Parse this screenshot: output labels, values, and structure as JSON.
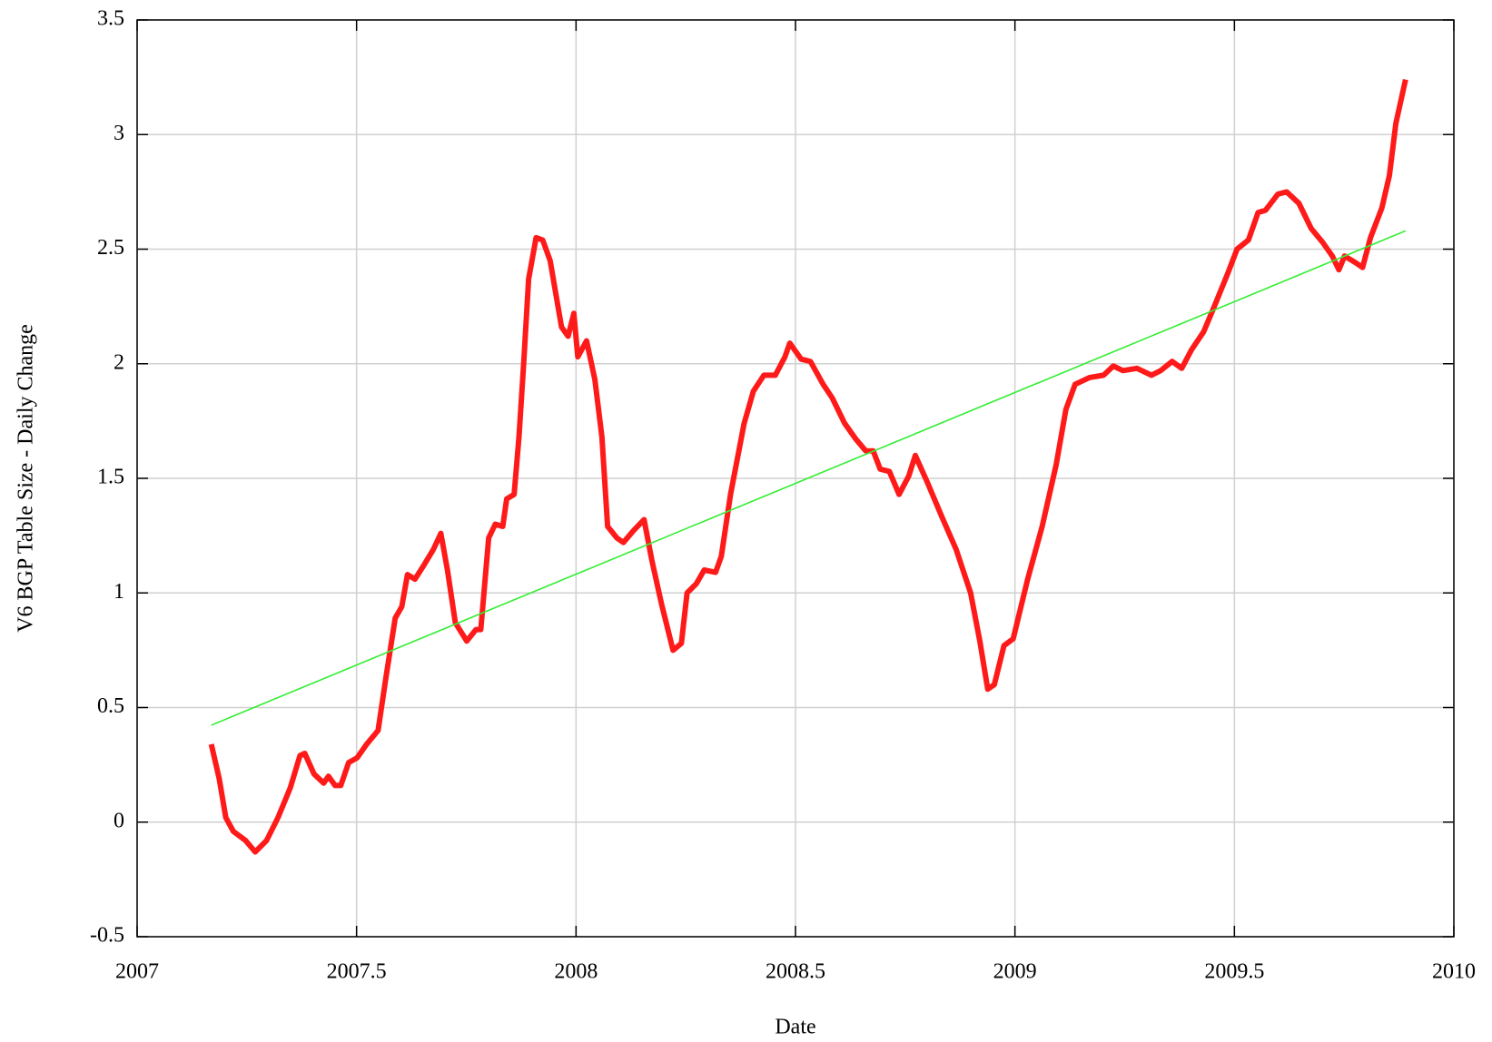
{
  "chart_data": {
    "type": "line",
    "x_label": "Date",
    "y_label": "V6 BGP Table Size - Daily Change",
    "xlim": [
      2007,
      2010
    ],
    "xticks": [
      2007,
      2007.5,
      2008,
      2008.5,
      2009,
      2009.5,
      2010
    ],
    "ylim": [
      -0.5,
      3.5
    ],
    "yticks": [
      -0.5,
      0,
      0.5,
      1,
      1.5,
      2,
      2.5,
      3,
      3.5
    ],
    "grid": true,
    "series": [
      {
        "color": "#ff1a1a",
        "x": [
          2007.169,
          2007.187,
          2007.202,
          2007.219,
          2007.247,
          2007.269,
          2007.295,
          2007.321,
          2007.349,
          2007.371,
          2007.382,
          2007.403,
          2007.425,
          2007.436,
          2007.451,
          2007.464,
          2007.482,
          2007.501,
          2007.523,
          2007.549,
          2007.566,
          2007.588,
          2007.603,
          2007.616,
          2007.633,
          2007.653,
          2007.675,
          2007.692,
          2007.707,
          2007.725,
          2007.751,
          2007.772,
          2007.783,
          2007.801,
          2007.816,
          2007.833,
          2007.842,
          2007.859,
          2007.87,
          2007.881,
          2007.892,
          2007.909,
          2007.924,
          2007.941,
          2007.967,
          2007.982,
          2007.995,
          2008.004,
          2008.024,
          2008.043,
          2008.059,
          2008.072,
          2008.093,
          2008.108,
          2008.13,
          2008.155,
          2008.173,
          2008.195,
          2008.221,
          2008.24,
          2008.253,
          2008.274,
          2008.292,
          2008.318,
          2008.331,
          2008.352,
          2008.383,
          2008.404,
          2008.428,
          2008.454,
          2008.476,
          2008.487,
          2008.513,
          2008.534,
          2008.563,
          2008.584,
          2008.612,
          2008.638,
          2008.66,
          2008.677,
          2008.693,
          2008.714,
          2008.736,
          2008.758,
          2008.773,
          2008.801,
          2008.834,
          2008.866,
          2008.899,
          2008.92,
          2008.938,
          2008.953,
          2008.975,
          2008.996,
          2009.029,
          2009.062,
          2009.094,
          2009.116,
          2009.137,
          2009.17,
          2009.202,
          2009.224,
          2009.246,
          2009.278,
          2009.311,
          2009.332,
          2009.358,
          2009.38,
          2009.402,
          2009.43,
          2009.452,
          2009.484,
          2009.506,
          2009.532,
          2009.554,
          2009.571,
          2009.599,
          2009.619,
          2009.647,
          2009.675,
          2009.701,
          2009.723,
          2009.738,
          2009.751,
          2009.777,
          2009.792,
          2009.81,
          2009.836,
          2009.853,
          2009.868,
          2009.89
        ],
        "values": [
          0.34,
          0.19,
          0.02,
          -0.04,
          -0.08,
          -0.13,
          -0.08,
          0.02,
          0.15,
          0.29,
          0.3,
          0.21,
          0.17,
          0.2,
          0.16,
          0.16,
          0.26,
          0.28,
          0.34,
          0.4,
          0.62,
          0.89,
          0.94,
          1.08,
          1.06,
          1.12,
          1.19,
          1.26,
          1.1,
          0.87,
          0.79,
          0.84,
          0.84,
          1.24,
          1.3,
          1.29,
          1.41,
          1.43,
          1.68,
          2.01,
          2.37,
          2.55,
          2.54,
          2.45,
          2.16,
          2.12,
          2.22,
          2.03,
          2.1,
          1.93,
          1.68,
          1.29,
          1.24,
          1.22,
          1.27,
          1.32,
          1.14,
          0.95,
          0.75,
          0.78,
          1.0,
          1.04,
          1.1,
          1.09,
          1.16,
          1.43,
          1.74,
          1.88,
          1.95,
          1.95,
          2.03,
          2.09,
          2.02,
          2.01,
          1.91,
          1.85,
          1.74,
          1.67,
          1.62,
          1.62,
          1.54,
          1.53,
          1.43,
          1.51,
          1.6,
          1.48,
          1.33,
          1.19,
          1.0,
          0.79,
          0.58,
          0.6,
          0.77,
          0.8,
          1.06,
          1.29,
          1.56,
          1.8,
          1.91,
          1.94,
          1.95,
          1.99,
          1.97,
          1.98,
          1.95,
          1.97,
          2.01,
          1.98,
          2.06,
          2.14,
          2.24,
          2.39,
          2.5,
          2.54,
          2.66,
          2.67,
          2.74,
          2.75,
          2.7,
          2.59,
          2.53,
          2.47,
          2.41,
          2.47,
          2.44,
          2.42,
          2.55,
          2.68,
          2.82,
          3.05,
          3.24
        ],
        "width": 6
      },
      {
        "color": "#33ee33",
        "x": [
          2007.169,
          2009.89
        ],
        "values": [
          0.423,
          2.58
        ],
        "width": 1.6
      }
    ]
  }
}
